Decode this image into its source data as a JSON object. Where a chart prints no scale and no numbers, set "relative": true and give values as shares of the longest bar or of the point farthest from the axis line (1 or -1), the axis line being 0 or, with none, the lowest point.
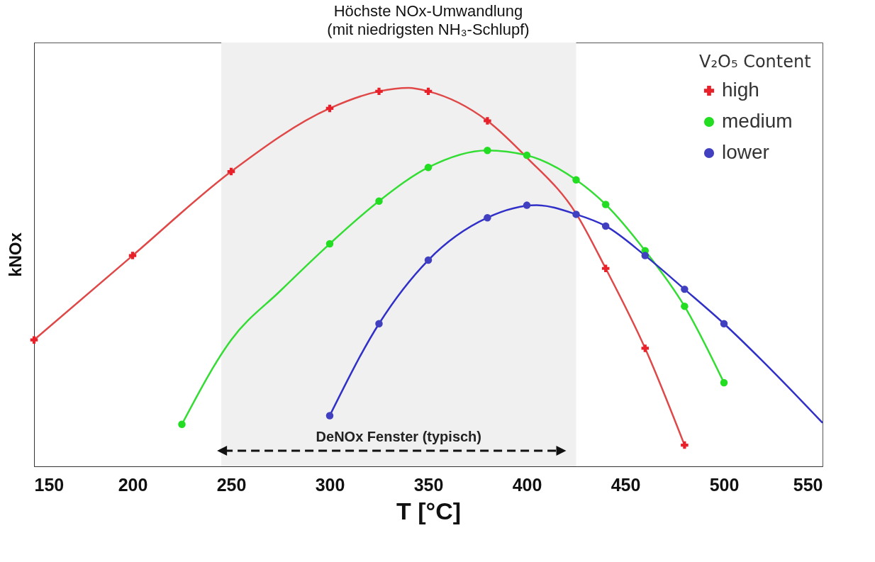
{
  "chart_data": {
    "type": "line",
    "title": "Höchste NOx-Umwandlung",
    "subtitle": "(mit niedrigsten NH₃-Schlupf)",
    "xlabel": "T [°C]",
    "ylabel": "kNOx",
    "legend_title": "V₂O₅ Content",
    "relative": true,
    "xlim": [
      150,
      550
    ],
    "xticks": [
      150,
      200,
      250,
      300,
      350,
      400,
      450,
      500,
      550
    ],
    "grid": false,
    "legend": "top right",
    "bands": [
      {
        "axis": "x",
        "from": 245,
        "to": 425,
        "label": "DeNOx Fenster (typisch)",
        "color": "#f0f0f0"
      }
    ],
    "series": [
      {
        "color": "#e04848",
        "x": [
          150,
          200,
          250,
          300,
          325,
          340,
          350,
          380,
          400,
          425,
          440,
          460,
          480
        ],
        "values": [
          0.334,
          0.557,
          0.779,
          0.946,
          0.991,
          1.0,
          0.991,
          0.913,
          0.816,
          0.668,
          0.523,
          0.312,
          0.056
        ]
      },
      {
        "color": "#33dd33",
        "x": [
          225,
          250,
          275,
          300,
          325,
          350,
          380,
          400,
          425,
          440,
          460,
          480,
          500
        ],
        "values": [
          0.111,
          0.334,
          0.464,
          0.588,
          0.701,
          0.79,
          0.835,
          0.822,
          0.757,
          0.692,
          0.57,
          0.423,
          0.221
        ]
      },
      {
        "color": "#3030c8",
        "x": [
          300,
          325,
          350,
          380,
          405,
          425,
          440,
          460,
          480,
          500,
          525,
          550
        ],
        "values": [
          0.134,
          0.377,
          0.545,
          0.657,
          0.69,
          0.666,
          0.635,
          0.557,
          0.468,
          0.377,
          0.25,
          0.115
        ]
      },
      {
        "type": "scatter",
        "name": "high",
        "color": "#e8202a",
        "marker": "cross",
        "x": [
          150,
          200,
          250,
          300,
          325,
          350,
          380,
          440,
          460,
          480
        ],
        "values": [
          0.334,
          0.557,
          0.779,
          0.946,
          0.991,
          0.991,
          0.913,
          0.523,
          0.312,
          0.056
        ]
      },
      {
        "type": "scatter",
        "name": "medium",
        "color": "#22dd22",
        "marker": "circle",
        "x": [
          225,
          300,
          325,
          350,
          380,
          400,
          425,
          440,
          460,
          480,
          500
        ],
        "values": [
          0.111,
          0.588,
          0.701,
          0.79,
          0.835,
          0.822,
          0.757,
          0.692,
          0.57,
          0.423,
          0.221
        ]
      },
      {
        "type": "scatter",
        "name": "lower",
        "color": "#4040c0",
        "marker": "circle",
        "x": [
          300,
          325,
          350,
          380,
          400,
          425,
          440,
          460,
          480,
          500
        ],
        "values": [
          0.134,
          0.377,
          0.545,
          0.657,
          0.69,
          0.666,
          0.635,
          0.557,
          0.468,
          0.377
        ]
      }
    ]
  }
}
